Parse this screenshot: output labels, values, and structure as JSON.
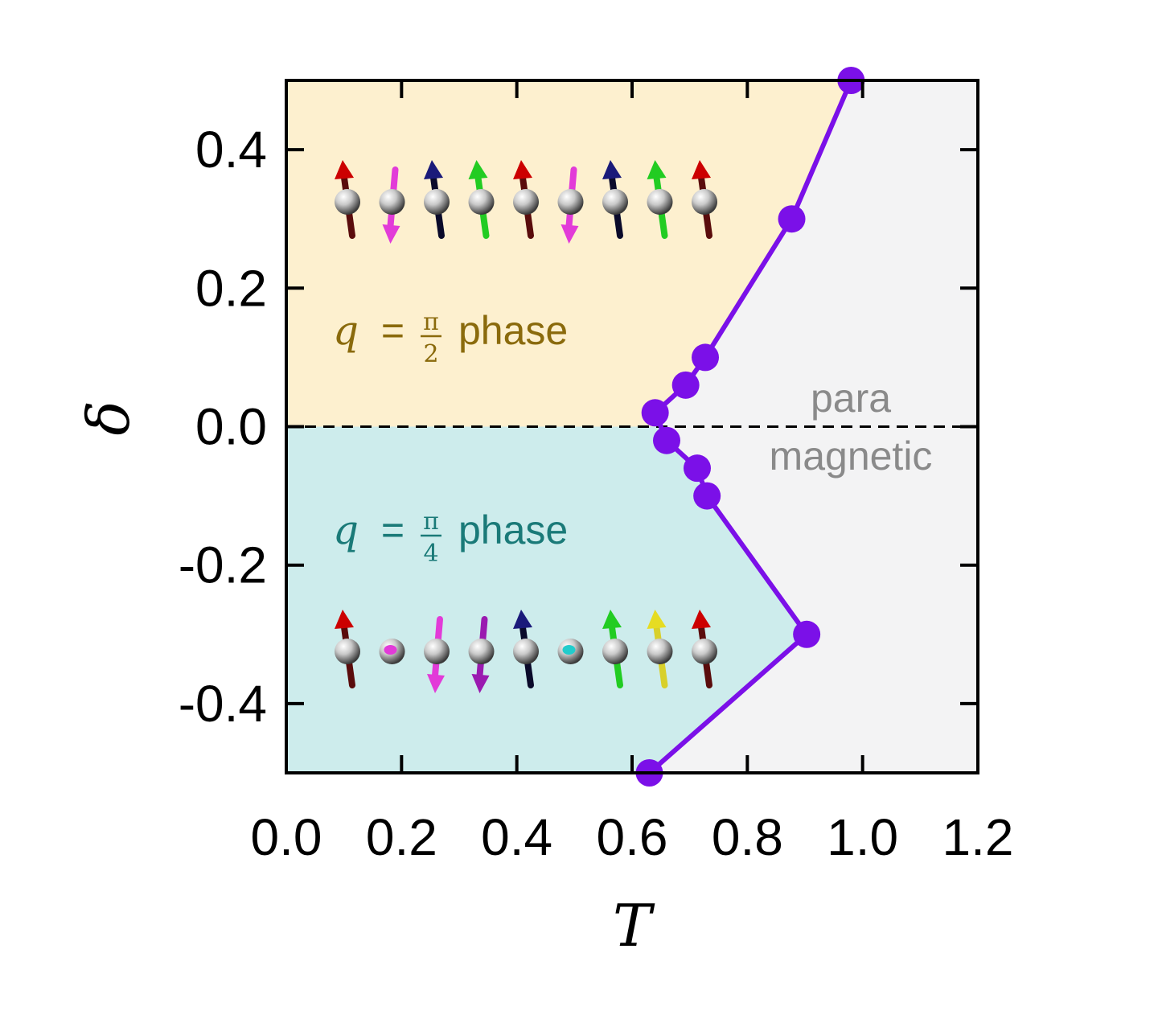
{
  "chart_data": {
    "type": "scatter",
    "xlabel": "T",
    "ylabel": "δ",
    "xlim": [
      0.0,
      1.2
    ],
    "ylim": [
      -0.5,
      0.5
    ],
    "x_ticks": [
      "0.0",
      "0.2",
      "0.4",
      "0.6",
      "0.8",
      "1.0",
      "1.2"
    ],
    "y_ticks": [
      "0.4",
      "0.2",
      "0.0",
      "-0.2",
      "-0.4"
    ],
    "x_tick_values": [
      0.0,
      0.2,
      0.4,
      0.6,
      0.8,
      1.0,
      1.2
    ],
    "y_tick_values": [
      0.4,
      0.2,
      0.0,
      -0.2,
      -0.4
    ],
    "series": [
      {
        "color": "#7b10e8",
        "points": [
          {
            "x": 0.63,
            "y": -0.5
          },
          {
            "x": 0.903,
            "y": -0.3
          },
          {
            "x": 0.73,
            "y": -0.1
          },
          {
            "x": 0.713,
            "y": -0.06
          },
          {
            "x": 0.66,
            "y": -0.02
          },
          {
            "x": 0.64,
            "y": 0.02
          },
          {
            "x": 0.693,
            "y": 0.06
          },
          {
            "x": 0.727,
            "y": 0.1
          },
          {
            "x": 0.877,
            "y": 0.3
          },
          {
            "x": 0.98,
            "y": 0.5
          }
        ]
      }
    ],
    "regions": {
      "upper": {
        "color": "#fdf0cf",
        "label_prefix": "q",
        "label_eq": "=",
        "frac_num": "π",
        "frac_den": "2",
        "label_suffix": "phase",
        "text_color": "#8a6a0c"
      },
      "lower": {
        "color": "#cdecec",
        "label_prefix": "q",
        "label_eq": "=",
        "frac_num": "π",
        "frac_den": "4",
        "label_suffix": "phase",
        "text_color": "#1a7a78"
      },
      "para": {
        "color": "#f3f3f4",
        "line1": "para",
        "line2": "magnetic"
      }
    },
    "zero_line": {
      "style": "dashed",
      "y": 0.0
    },
    "spin_chains": {
      "upper": [
        "red-up",
        "magenta-down",
        "navy-up",
        "green-up",
        "red-up",
        "magenta-down",
        "navy-up",
        "green-up",
        "red-up"
      ],
      "lower": [
        "red-up",
        "magenta-point",
        "magenta-down",
        "purple-down",
        "navy-up",
        "cyan-point",
        "green-up",
        "yellow-up",
        "red-up"
      ]
    }
  }
}
